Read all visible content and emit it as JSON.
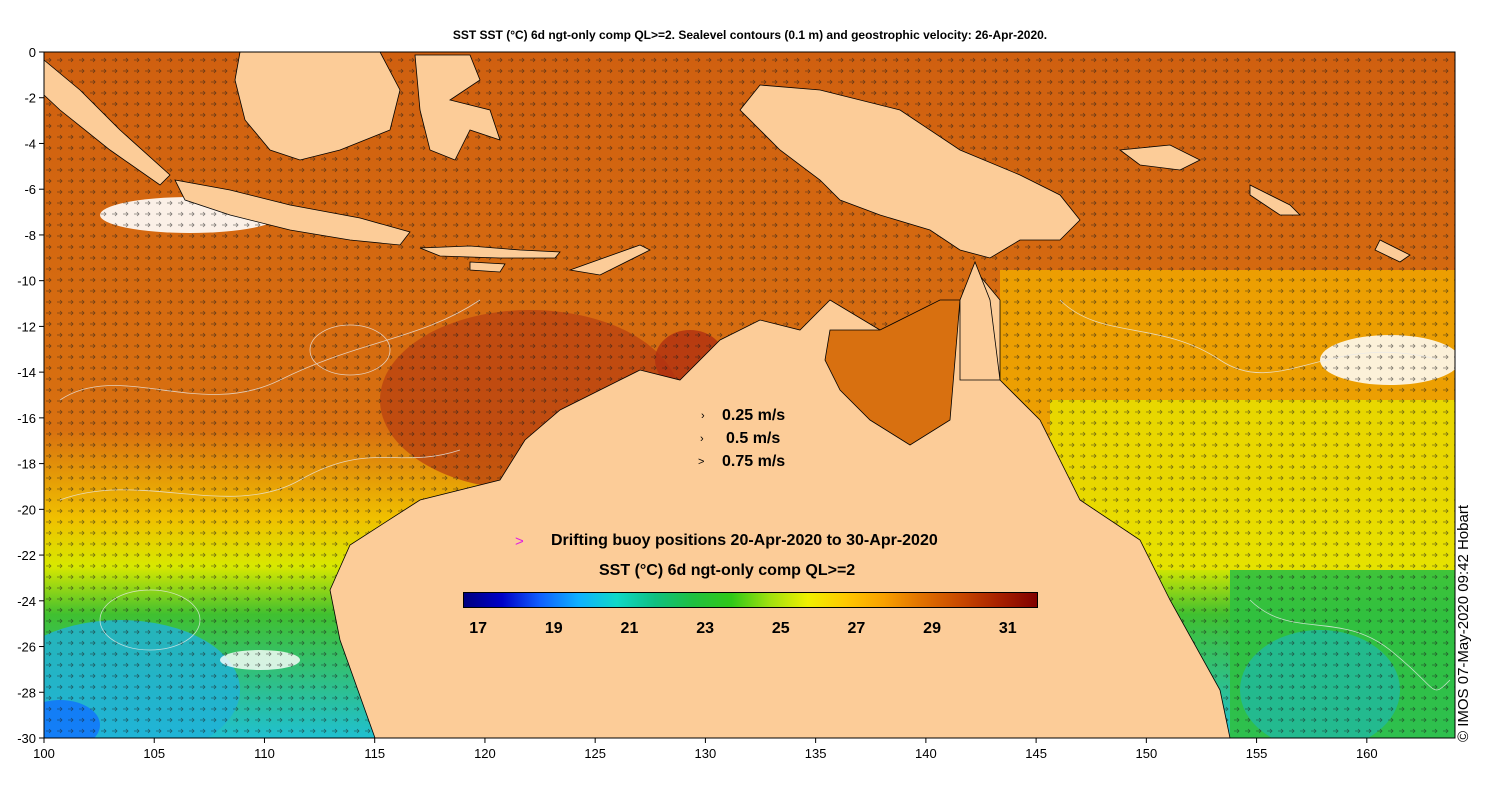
{
  "title": "SST SST (°C) 6d ngt-only comp QL>=2. Sealevel contours (0.1 m) and geostrophic velocity: 26-Apr-2020.",
  "velocity_legend": [
    {
      "glyph": "›",
      "label": "0.25 m/s"
    },
    {
      "glyph": "›",
      "label": "0.5 m/s"
    },
    {
      "glyph": ">",
      "label": "0.75 m/s"
    }
  ],
  "buoy": {
    "marker": ">",
    "label": "Drifting buoy positions 20-Apr-2020 to 30-Apr-2020",
    "color": "#e020e0"
  },
  "colorbar": {
    "title": "SST (°C) 6d ngt-only comp QL>=2",
    "labels": [
      "17",
      "19",
      "21",
      "23",
      "25",
      "27",
      "29",
      "31"
    ],
    "min": 16.6,
    "max": 31.8,
    "colors": [
      "#00007f",
      "#0000c8",
      "#1060ff",
      "#10b0ff",
      "#10d8c8",
      "#10c080",
      "#20c040",
      "#30c818",
      "#a0e010",
      "#f0f000",
      "#ffc800",
      "#f8a000",
      "#e07000",
      "#c84800",
      "#a82000",
      "#800000"
    ]
  },
  "axes": {
    "x_ticks": [
      "100",
      "105",
      "110",
      "115",
      "120",
      "125",
      "130",
      "135",
      "140",
      "145",
      "150",
      "155",
      "160"
    ],
    "y_ticks": [
      "0",
      "-2",
      "-4",
      "-6",
      "-8",
      "-10",
      "-12",
      "-14",
      "-16",
      "-18",
      "-20",
      "-22",
      "-24",
      "-26",
      "-28",
      "-30"
    ],
    "lon_range": [
      100,
      164
    ],
    "lat_range": [
      -30,
      0
    ]
  },
  "credit": "© IMOS 07-May-2020 09:42 Hobart",
  "colors": {
    "land": "#fccc98",
    "sst_warm": "#d6680c",
    "sst_hot": "#b84010",
    "sst_mid": "#f0a000",
    "sst_cool": "#e8f000",
    "sst_green": "#30c030",
    "sst_cyan": "#30c0d0"
  }
}
